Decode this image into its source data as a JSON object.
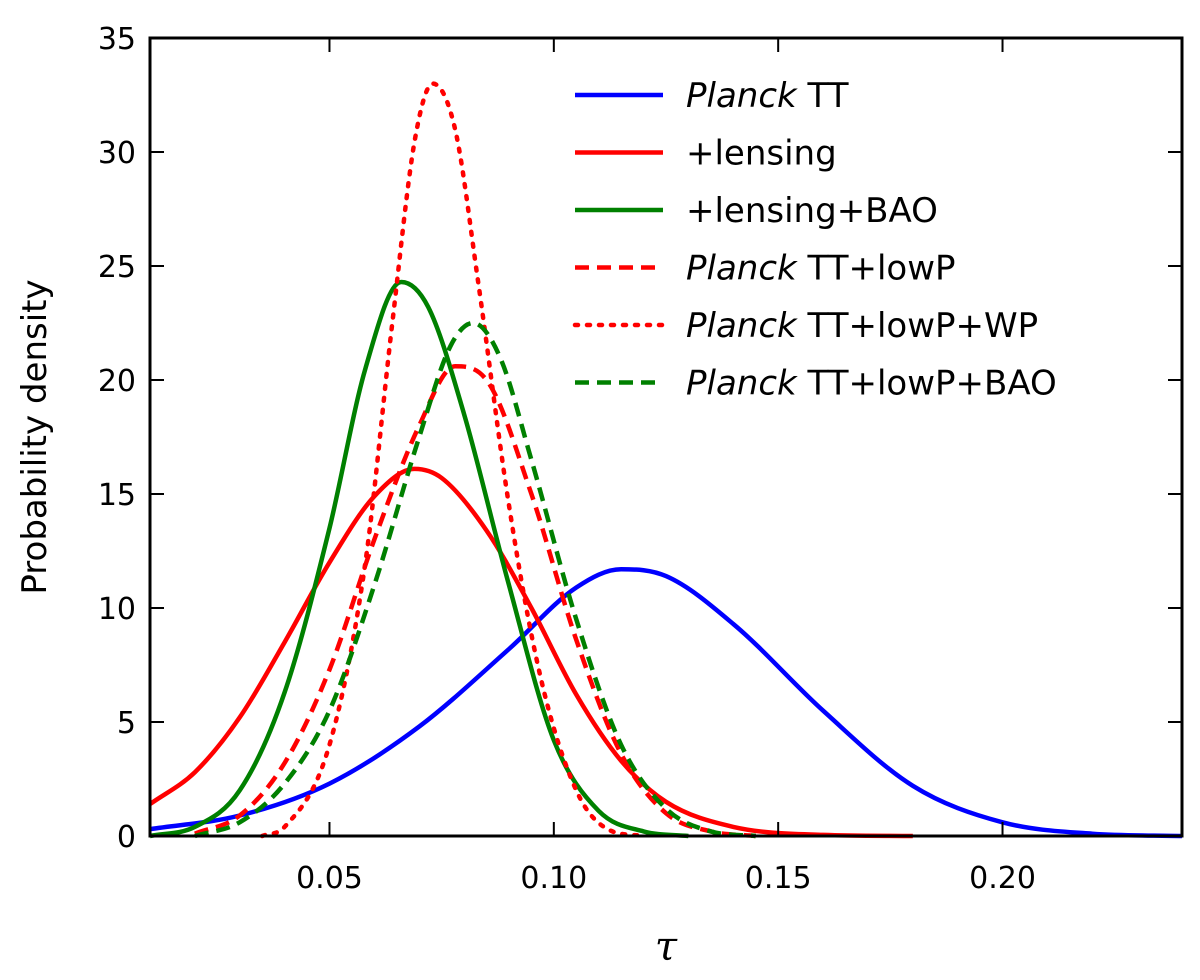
{
  "chart_data": {
    "type": "line",
    "xlabel": "τ",
    "ylabel": "Probability density",
    "xlim": [
      0.01,
      0.24
    ],
    "ylim": [
      0,
      35
    ],
    "xticks": [
      0.05,
      0.1,
      0.15,
      0.2
    ],
    "xtick_labels": [
      "0.05",
      "0.10",
      "0.15",
      "0.20"
    ],
    "yticks": [
      0,
      5,
      10,
      15,
      20,
      25,
      30,
      35
    ],
    "ytick_labels": [
      "0",
      "5",
      "10",
      "15",
      "20",
      "25",
      "30",
      "35"
    ],
    "grid": false,
    "legend_position": "top-right",
    "series": [
      {
        "name_italic": "Planck",
        "name_rest": " TT",
        "color": "#0000ff",
        "style": "solid",
        "points": [
          [
            0.01,
            0.3
          ],
          [
            0.03,
            0.9
          ],
          [
            0.05,
            2.3
          ],
          [
            0.07,
            4.8
          ],
          [
            0.09,
            8.2
          ],
          [
            0.105,
            10.9
          ],
          [
            0.115,
            11.7
          ],
          [
            0.125,
            11.4
          ],
          [
            0.14,
            9.3
          ],
          [
            0.16,
            5.5
          ],
          [
            0.18,
            2.2
          ],
          [
            0.2,
            0.6
          ],
          [
            0.22,
            0.1
          ],
          [
            0.24,
            0.0
          ]
        ]
      },
      {
        "name_italic": "",
        "name_rest": "+lensing",
        "color": "#ff0000",
        "style": "solid",
        "points": [
          [
            0.01,
            1.4
          ],
          [
            0.02,
            2.8
          ],
          [
            0.03,
            5.2
          ],
          [
            0.04,
            8.5
          ],
          [
            0.05,
            12.0
          ],
          [
            0.06,
            14.9
          ],
          [
            0.069,
            16.1
          ],
          [
            0.075,
            15.7
          ],
          [
            0.085,
            13.4
          ],
          [
            0.095,
            10.0
          ],
          [
            0.105,
            6.2
          ],
          [
            0.115,
            3.3
          ],
          [
            0.125,
            1.5
          ],
          [
            0.14,
            0.4
          ],
          [
            0.16,
            0.05
          ],
          [
            0.18,
            0.0
          ]
        ]
      },
      {
        "name_italic": "",
        "name_rest": "+lensing+BAO",
        "color": "#008000",
        "style": "solid",
        "points": [
          [
            0.01,
            0.0
          ],
          [
            0.02,
            0.4
          ],
          [
            0.03,
            2.0
          ],
          [
            0.04,
            6.3
          ],
          [
            0.05,
            13.5
          ],
          [
            0.058,
            20.5
          ],
          [
            0.066,
            24.3
          ],
          [
            0.072,
            23.2
          ],
          [
            0.08,
            18.5
          ],
          [
            0.09,
            11.0
          ],
          [
            0.1,
            4.2
          ],
          [
            0.11,
            1.1
          ],
          [
            0.12,
            0.2
          ],
          [
            0.13,
            0.0
          ]
        ]
      },
      {
        "name_italic": "Planck",
        "name_rest": " TT+lowP",
        "color": "#ff0000",
        "style": "dashed",
        "points": [
          [
            0.02,
            0.1
          ],
          [
            0.03,
            0.9
          ],
          [
            0.04,
            3.2
          ],
          [
            0.05,
            7.3
          ],
          [
            0.06,
            13.0
          ],
          [
            0.07,
            18.0
          ],
          [
            0.078,
            20.6
          ],
          [
            0.085,
            20.0
          ],
          [
            0.095,
            15.0
          ],
          [
            0.105,
            8.6
          ],
          [
            0.115,
            3.6
          ],
          [
            0.125,
            1.0
          ],
          [
            0.135,
            0.2
          ],
          [
            0.145,
            0.0
          ]
        ]
      },
      {
        "name_italic": "Planck",
        "name_rest": " TT+lowP+WP",
        "color": "#ff0000",
        "style": "dotted",
        "points": [
          [
            0.035,
            0.0
          ],
          [
            0.04,
            0.4
          ],
          [
            0.05,
            4.0
          ],
          [
            0.058,
            12.0
          ],
          [
            0.064,
            22.5
          ],
          [
            0.069,
            30.5
          ],
          [
            0.073,
            33.0
          ],
          [
            0.078,
            31.0
          ],
          [
            0.083,
            24.5
          ],
          [
            0.09,
            14.5
          ],
          [
            0.097,
            7.0
          ],
          [
            0.105,
            2.0
          ],
          [
            0.112,
            0.3
          ],
          [
            0.12,
            0.0
          ]
        ]
      },
      {
        "name_italic": "Planck",
        "name_rest": " TT+lowP+BAO",
        "color": "#008000",
        "style": "dashed",
        "points": [
          [
            0.02,
            0.0
          ],
          [
            0.03,
            0.6
          ],
          [
            0.04,
            2.3
          ],
          [
            0.05,
            5.5
          ],
          [
            0.06,
            11.0
          ],
          [
            0.07,
            17.5
          ],
          [
            0.077,
            21.5
          ],
          [
            0.082,
            22.5
          ],
          [
            0.088,
            21.0
          ],
          [
            0.095,
            16.5
          ],
          [
            0.105,
            9.5
          ],
          [
            0.115,
            4.0
          ],
          [
            0.125,
            1.2
          ],
          [
            0.135,
            0.2
          ],
          [
            0.145,
            0.0
          ]
        ]
      }
    ]
  }
}
